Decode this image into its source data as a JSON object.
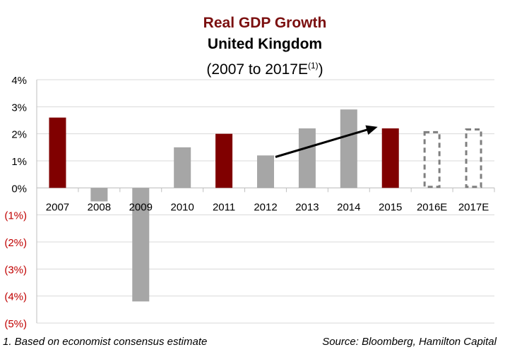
{
  "title": "Real GDP Growth",
  "subtitle": "United Kingdom",
  "period_main": "(2007 to 2017E",
  "period_sup": "(1)",
  "period_close": ")",
  "footnote": "1. Based on economist consensus estimate",
  "source": "Source: Bloomberg, Hamilton Capital",
  "colors": {
    "title": "#7b0f0f",
    "highlight": "#800000",
    "normal": "#a6a6a6",
    "estimate": "#7f7f7f",
    "negative_tick": "#c00000"
  },
  "chart_data": {
    "type": "bar",
    "categories": [
      "2007",
      "2008",
      "2009",
      "2010",
      "2011",
      "2012",
      "2013",
      "2014",
      "2015",
      "2016E",
      "2017E"
    ],
    "values": [
      2.6,
      -0.5,
      -4.2,
      1.5,
      2.0,
      1.2,
      2.2,
      2.9,
      2.2,
      2.1,
      2.2
    ],
    "bar_styles": [
      "highlight",
      "normal",
      "normal",
      "normal",
      "highlight",
      "normal",
      "normal",
      "normal",
      "highlight",
      "estimate",
      "estimate"
    ],
    "ylim": [
      -5,
      4
    ],
    "yticks": [
      4,
      3,
      2,
      1,
      0,
      -1,
      -2,
      -3,
      -4,
      -5
    ],
    "ytick_labels": [
      "4%",
      "3%",
      "2%",
      "1%",
      "0%",
      "(1%)",
      "(2%)",
      "(3%)",
      "(4%)",
      "(5%)"
    ],
    "grid": true,
    "annotation": {
      "type": "arrow",
      "from": {
        "x": "2012",
        "y": 1.3
      },
      "to": {
        "x": "2015",
        "y": 2.1
      }
    }
  }
}
